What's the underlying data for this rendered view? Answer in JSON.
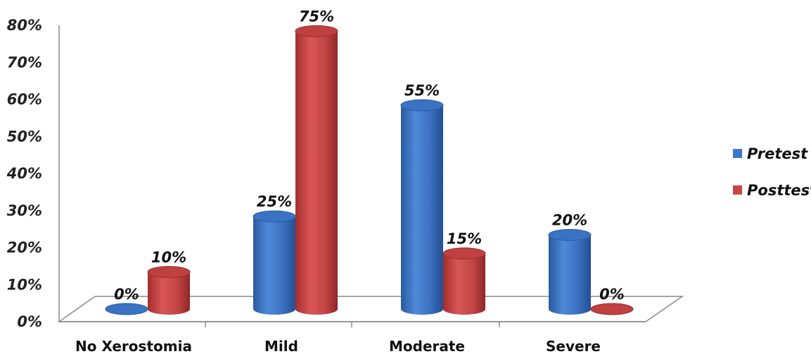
{
  "chart_data": {
    "type": "bar",
    "style": "3d-cylinder",
    "categories": [
      "No Xerostomia",
      "Mild",
      "Moderate",
      "Severe"
    ],
    "series": [
      {
        "name": "Pretest",
        "values": [
          0,
          25,
          55,
          20
        ],
        "labels": [
          "0%",
          "25%",
          "55%",
          "20%"
        ],
        "color": "#3f77c8"
      },
      {
        "name": "Posttest",
        "values": [
          10,
          75,
          15,
          0
        ],
        "labels": [
          "10%",
          "75%",
          "15%",
          "0%"
        ],
        "color": "#c94343"
      }
    ],
    "ylim": [
      0,
      80
    ],
    "yticks": [
      "0%",
      "10%",
      "20%",
      "30%",
      "40%",
      "50%",
      "60%",
      "70%",
      "80%"
    ],
    "legend_position": "right",
    "grid": false
  }
}
